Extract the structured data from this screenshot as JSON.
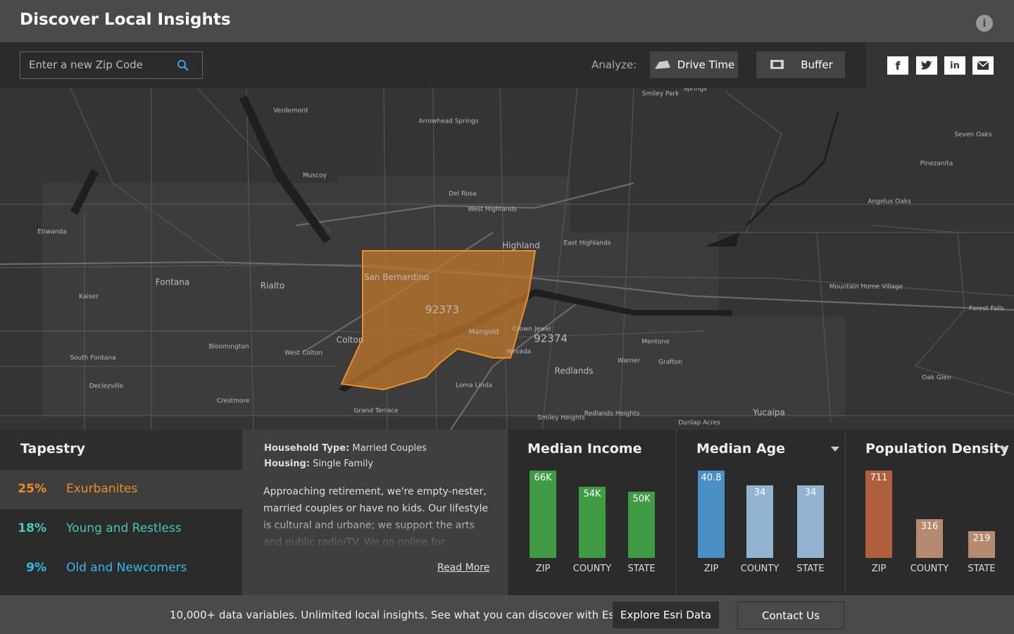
{
  "header": {
    "title": "Discover Local Insights"
  },
  "search": {
    "placeholder": "Enter a new Zip Code"
  },
  "analyze": {
    "label": "Analyze:",
    "buttons": [
      "Drive Time",
      "Buffer"
    ]
  },
  "map": {
    "labels": [
      "Verdemont",
      "Arrowhead Springs",
      "Muscoy",
      "Del Rosa",
      "West Highlands",
      "Etiwanda",
      "Highland",
      "East Highlands",
      "Fontana",
      "Rialto",
      "Kaiser",
      "San Bernardino",
      "92373",
      "Mangold",
      "Crown Jewel",
      "92374",
      "Colton",
      "Bloomington",
      "West Colton",
      "South Fontana",
      "Nevada",
      "Mentone",
      "Warner",
      "Grafton",
      "Redlands",
      "Loma Linda",
      "Declezville",
      "Crestmore",
      "Grand Terrace",
      "Smiley Heights",
      "Redlands Heights",
      "Dunlap Acres",
      "Yucaipa",
      "Oak Glen",
      "Forest Falls",
      "Mountain Home Village",
      "Angelus Oaks",
      "Pinezanita",
      "Seven Oaks",
      "Smiley Park",
      "Springs"
    ]
  },
  "tapestry": {
    "title": "Tapestry",
    "segments": [
      {
        "share": "25%",
        "name": "Exurbanites",
        "color": "#f08a24"
      },
      {
        "share": "18%",
        "name": "Young and Restless",
        "color": "#45c7b5"
      },
      {
        "share": "9%",
        "name": "Old and Newcomers",
        "color": "#35b9e8"
      }
    ]
  },
  "profile": {
    "household_label": "Household Type:",
    "household": "Married Couples",
    "housing_label": "Housing:",
    "housing": "Single Family",
    "description": "Approaching retirement, we're empty-nester, married couples or have no kids. Our lifestyle is cultural and urbane; we support the arts and public radio/TV. We go online for everything",
    "read_more": "Read More"
  },
  "chart_data": [
    {
      "type": "bar",
      "title": "Median Income",
      "categories": [
        "ZIP",
        "COUNTY",
        "STATE"
      ],
      "values": [
        66000,
        54000,
        50000
      ],
      "value_labels": [
        "66K",
        "54K",
        "50K"
      ],
      "colors": [
        "#3f9c45",
        "#3f9c45",
        "#3f9c45"
      ]
    },
    {
      "type": "bar",
      "title": "Median Age",
      "categories": [
        "ZIP",
        "COUNTY",
        "STATE"
      ],
      "values": [
        40.8,
        34,
        34
      ],
      "colors": [
        "#4a90c4",
        "#93b4d0",
        "#93b4d0"
      ]
    },
    {
      "type": "bar",
      "title": "Population Density",
      "categories": [
        "ZIP",
        "COUNTY",
        "STATE"
      ],
      "values": [
        711,
        316,
        219
      ],
      "colors": [
        "#b05f3c",
        "#b58a6e",
        "#b58a6e"
      ]
    }
  ],
  "footer": {
    "text": "10,000+ data variables. Unlimited local insights. See what you can discover with Esri.",
    "buttons": [
      "Explore Esri Data",
      "Contact Us"
    ]
  }
}
